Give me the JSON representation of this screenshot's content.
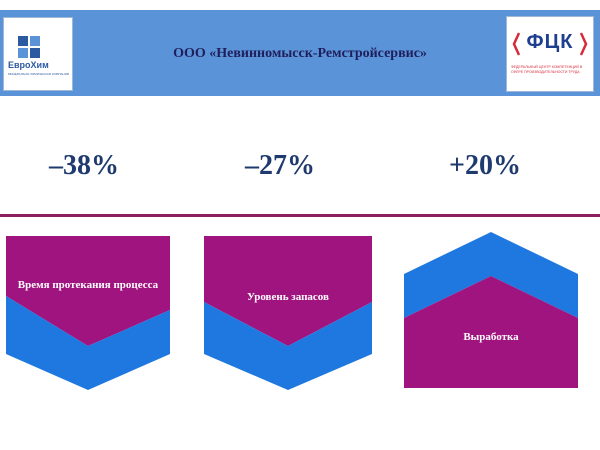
{
  "header": {
    "title": "ООО «Невинномысск-Ремстройсервис»",
    "left_logo": {
      "name": "ЕвроХим",
      "subtitle": "МИНЕРАЛЬНО-ХИМИЧЕСКАЯ КОМПАНИЯ"
    },
    "right_logo": {
      "name": "ФЦК",
      "subtitle": "ФЕДЕРАЛЬНЫЙ ЦЕНТР КОМПЕТЕНЦИЙ В СФЕРЕ ПРОИЗВОДИТЕЛЬНОСТИ ТРУДА"
    }
  },
  "metrics": [
    {
      "value": "–38%",
      "label": "Время протекания процесса"
    },
    {
      "value": "–27%",
      "label": "Уровень запасов"
    },
    {
      "value": "+20%",
      "label": "Выработка"
    }
  ],
  "colors": {
    "header_bg": "#5b93d8",
    "magenta": "#a0147f",
    "blue": "#1e78e0",
    "text_dark": "#1f3a6e",
    "divider": "#8b1f62"
  }
}
